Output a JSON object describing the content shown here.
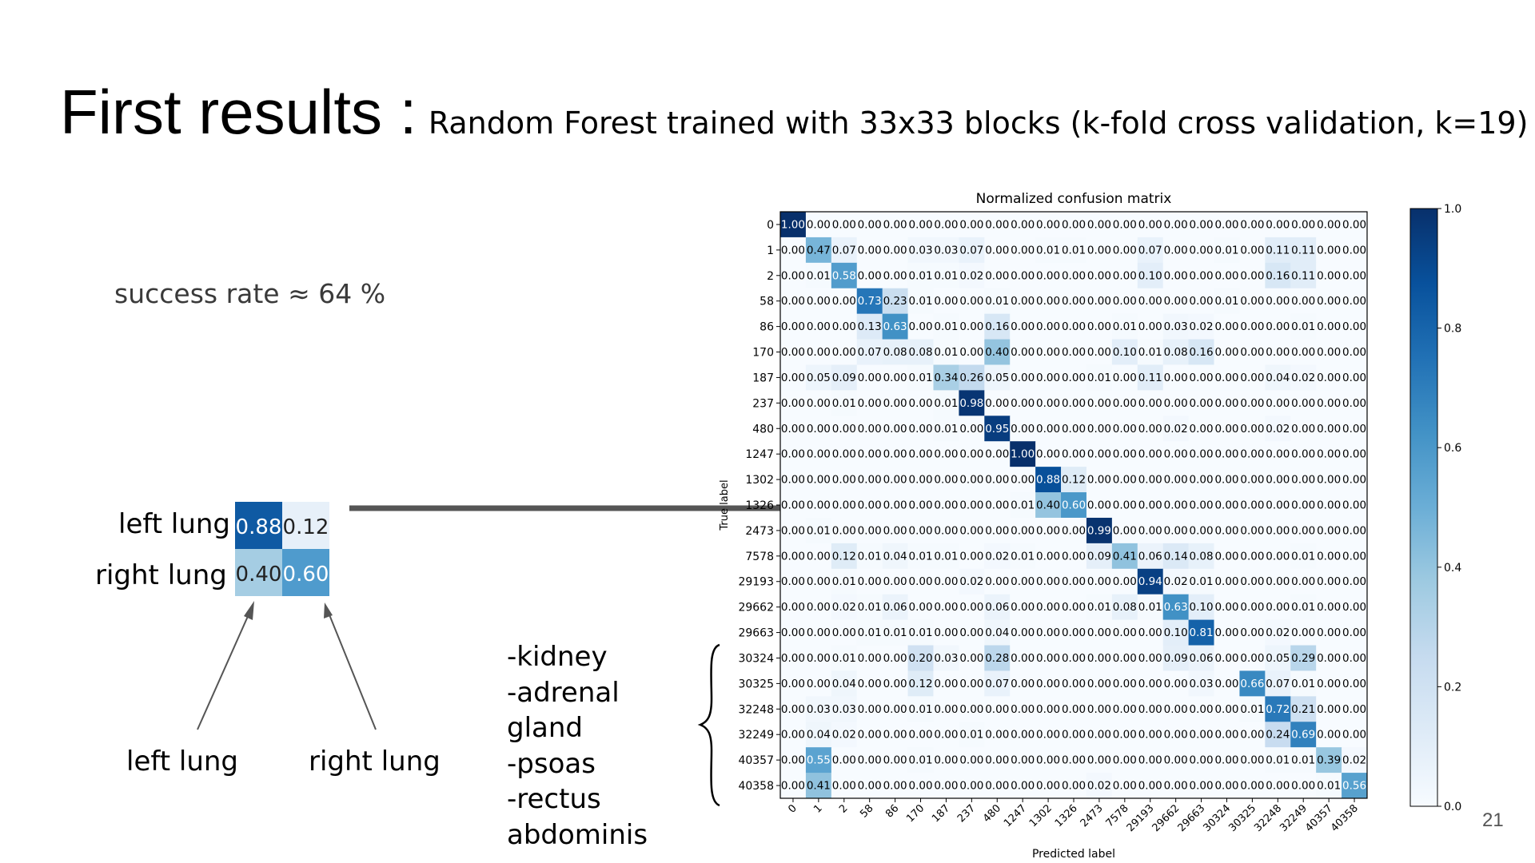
{
  "slide": {
    "title": "First results :",
    "subtitle": "Random Forest trained with 33x33 blocks (k-fold cross validation, k=19)",
    "success_rate": "success rate ≈ 64 %",
    "inset": {
      "row_labels": [
        "left lung",
        "right lung"
      ],
      "values": [
        [
          "0.88",
          "0.12"
        ],
        [
          "0.40",
          "0.60"
        ]
      ]
    },
    "arrow_labels": [
      "left lung",
      "right lung"
    ],
    "organs": [
      "-kidney",
      "-adrenal",
      "gland",
      "-psoas",
      "-rectus",
      "abdominis"
    ],
    "page_number": "21"
  },
  "chart_data": {
    "type": "heatmap",
    "title": "Normalized confusion matrix",
    "xlabel": "Predicted label",
    "ylabel": "True label",
    "labels": [
      "0",
      "1",
      "2",
      "58",
      "86",
      "170",
      "187",
      "237",
      "480",
      "1247",
      "1302",
      "1326",
      "2473",
      "7578",
      "29193",
      "29662",
      "29663",
      "30324",
      "30325",
      "32248",
      "32249",
      "40357",
      "40358"
    ],
    "values": [
      [
        1.0,
        0.0,
        0.0,
        0.0,
        0.0,
        0.0,
        0.0,
        0.0,
        0.0,
        0.0,
        0.0,
        0.0,
        0.0,
        0.0,
        0.0,
        0.0,
        0.0,
        0.0,
        0.0,
        0.0,
        0.0,
        0.0,
        0.0
      ],
      [
        0.0,
        0.47,
        0.07,
        0.0,
        0.0,
        0.03,
        0.03,
        0.07,
        0.0,
        0.0,
        0.01,
        0.01,
        0.0,
        0.0,
        0.07,
        0.0,
        0.0,
        0.01,
        0.0,
        0.11,
        0.11,
        0.0,
        0.0
      ],
      [
        0.0,
        0.01,
        0.58,
        0.0,
        0.0,
        0.01,
        0.01,
        0.02,
        0.0,
        0.0,
        0.0,
        0.0,
        0.0,
        0.0,
        0.1,
        0.0,
        0.0,
        0.0,
        0.0,
        0.16,
        0.11,
        0.0,
        0.0
      ],
      [
        0.0,
        0.0,
        0.0,
        0.73,
        0.23,
        0.01,
        0.0,
        0.0,
        0.01,
        0.0,
        0.0,
        0.0,
        0.0,
        0.0,
        0.0,
        0.0,
        0.0,
        0.01,
        0.0,
        0.0,
        0.0,
        0.0,
        0.0
      ],
      [
        0.0,
        0.0,
        0.0,
        0.13,
        0.63,
        0.0,
        0.01,
        0.0,
        0.16,
        0.0,
        0.0,
        0.0,
        0.0,
        0.01,
        0.0,
        0.03,
        0.02,
        0.0,
        0.0,
        0.0,
        0.01,
        0.0,
        0.0
      ],
      [
        0.0,
        0.0,
        0.0,
        0.07,
        0.08,
        0.08,
        0.01,
        0.0,
        0.4,
        0.0,
        0.0,
        0.0,
        0.0,
        0.1,
        0.01,
        0.08,
        0.16,
        0.0,
        0.0,
        0.0,
        0.0,
        0.0,
        0.0
      ],
      [
        0.0,
        0.05,
        0.09,
        0.0,
        0.0,
        0.01,
        0.34,
        0.26,
        0.05,
        0.0,
        0.0,
        0.0,
        0.01,
        0.0,
        0.11,
        0.0,
        0.0,
        0.0,
        0.0,
        0.04,
        0.02,
        0.0,
        0.0
      ],
      [
        0.0,
        0.0,
        0.01,
        0.0,
        0.0,
        0.0,
        0.01,
        0.98,
        0.0,
        0.0,
        0.0,
        0.0,
        0.0,
        0.0,
        0.0,
        0.0,
        0.0,
        0.0,
        0.0,
        0.0,
        0.0,
        0.0,
        0.0
      ],
      [
        0.0,
        0.0,
        0.0,
        0.0,
        0.0,
        0.0,
        0.01,
        0.0,
        0.95,
        0.0,
        0.0,
        0.0,
        0.0,
        0.0,
        0.0,
        0.02,
        0.0,
        0.0,
        0.0,
        0.02,
        0.0,
        0.0,
        0.0
      ],
      [
        0.0,
        0.0,
        0.0,
        0.0,
        0.0,
        0.0,
        0.0,
        0.0,
        0.0,
        1.0,
        0.0,
        0.0,
        0.0,
        0.0,
        0.0,
        0.0,
        0.0,
        0.0,
        0.0,
        0.0,
        0.0,
        0.0,
        0.0
      ],
      [
        0.0,
        0.0,
        0.0,
        0.0,
        0.0,
        0.0,
        0.0,
        0.0,
        0.0,
        0.0,
        0.88,
        0.12,
        0.0,
        0.0,
        0.0,
        0.0,
        0.0,
        0.0,
        0.0,
        0.0,
        0.0,
        0.0,
        0.0
      ],
      [
        0.0,
        0.0,
        0.0,
        0.0,
        0.0,
        0.0,
        0.0,
        0.0,
        0.0,
        0.01,
        0.4,
        0.6,
        0.0,
        0.0,
        0.0,
        0.0,
        0.0,
        0.0,
        0.0,
        0.0,
        0.0,
        0.0,
        0.0
      ],
      [
        0.0,
        0.01,
        0.0,
        0.0,
        0.0,
        0.0,
        0.0,
        0.0,
        0.0,
        0.0,
        0.0,
        0.0,
        0.99,
        0.0,
        0.0,
        0.0,
        0.0,
        0.0,
        0.0,
        0.0,
        0.0,
        0.0,
        0.0
      ],
      [
        0.0,
        0.0,
        0.12,
        0.01,
        0.04,
        0.01,
        0.01,
        0.0,
        0.02,
        0.01,
        0.0,
        0.0,
        0.09,
        0.41,
        0.06,
        0.14,
        0.08,
        0.0,
        0.0,
        0.0,
        0.01,
        0.0,
        0.0
      ],
      [
        0.0,
        0.0,
        0.01,
        0.0,
        0.0,
        0.0,
        0.0,
        0.02,
        0.0,
        0.0,
        0.0,
        0.0,
        0.0,
        0.0,
        0.94,
        0.02,
        0.01,
        0.0,
        0.0,
        0.0,
        0.0,
        0.0,
        0.0
      ],
      [
        0.0,
        0.0,
        0.02,
        0.01,
        0.06,
        0.0,
        0.0,
        0.0,
        0.06,
        0.0,
        0.0,
        0.0,
        0.01,
        0.08,
        0.01,
        0.63,
        0.1,
        0.0,
        0.0,
        0.0,
        0.01,
        0.0,
        0.0
      ],
      [
        0.0,
        0.0,
        0.0,
        0.01,
        0.01,
        0.01,
        0.0,
        0.0,
        0.04,
        0.0,
        0.0,
        0.0,
        0.0,
        0.0,
        0.0,
        0.1,
        0.81,
        0.0,
        0.0,
        0.02,
        0.0,
        0.0,
        0.0
      ],
      [
        0.0,
        0.0,
        0.01,
        0.0,
        0.0,
        0.2,
        0.03,
        0.0,
        0.28,
        0.0,
        0.0,
        0.0,
        0.0,
        0.0,
        0.0,
        0.09,
        0.06,
        0.0,
        0.0,
        0.05,
        0.29,
        0.0,
        0.0
      ],
      [
        0.0,
        0.0,
        0.04,
        0.0,
        0.0,
        0.12,
        0.0,
        0.0,
        0.07,
        0.0,
        0.0,
        0.0,
        0.0,
        0.0,
        0.0,
        0.0,
        0.03,
        0.0,
        0.66,
        0.07,
        0.01,
        0.0,
        0.0
      ],
      [
        0.0,
        0.03,
        0.03,
        0.0,
        0.0,
        0.01,
        0.0,
        0.0,
        0.0,
        0.0,
        0.0,
        0.0,
        0.0,
        0.0,
        0.0,
        0.0,
        0.0,
        0.0,
        0.01,
        0.72,
        0.21,
        0.0,
        0.0
      ],
      [
        0.0,
        0.04,
        0.02,
        0.0,
        0.0,
        0.0,
        0.0,
        0.01,
        0.0,
        0.0,
        0.0,
        0.0,
        0.0,
        0.0,
        0.0,
        0.0,
        0.0,
        0.0,
        0.0,
        0.24,
        0.69,
        0.0,
        0.0
      ],
      [
        0.0,
        0.55,
        0.0,
        0.0,
        0.0,
        0.01,
        0.0,
        0.0,
        0.0,
        0.0,
        0.0,
        0.0,
        0.0,
        0.0,
        0.0,
        0.0,
        0.0,
        0.0,
        0.0,
        0.01,
        0.01,
        0.39,
        0.02
      ],
      [
        0.0,
        0.41,
        0.0,
        0.0,
        0.0,
        0.0,
        0.0,
        0.0,
        0.0,
        0.0,
        0.0,
        0.0,
        0.02,
        0.0,
        0.0,
        0.0,
        0.0,
        0.0,
        0.0,
        0.0,
        0.0,
        0.01,
        0.56
      ]
    ],
    "colorbar": {
      "min": 0.0,
      "max": 1.0,
      "ticks": [
        "0.0",
        "0.2",
        "0.4",
        "0.6",
        "0.8",
        "1.0"
      ]
    },
    "colormap": [
      "#f7fbff",
      "#deebf7",
      "#c6dbef",
      "#9ecae1",
      "#6baed6",
      "#4292c6",
      "#2171b5",
      "#08519c",
      "#08306b"
    ]
  }
}
